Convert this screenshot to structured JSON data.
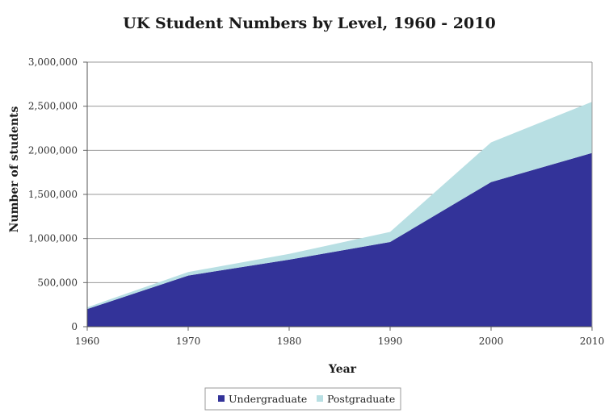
{
  "chart_data": {
    "type": "area",
    "stacked": true,
    "title": "UK Student Numbers by Level, 1960 - 2010",
    "xlabel": "Year",
    "ylabel": "Number of students",
    "x": [
      1960,
      1970,
      1980,
      1990,
      2000,
      2010
    ],
    "xticks": [
      "1960",
      "1970",
      "1980",
      "1990",
      "2000",
      "2010"
    ],
    "ylim": [
      0,
      3000000
    ],
    "yticks": [
      {
        "value": 0,
        "label": "0"
      },
      {
        "value": 500000,
        "label": "500,000"
      },
      {
        "value": 1000000,
        "label": "1,000,000"
      },
      {
        "value": 1500000,
        "label": "1,500,000"
      },
      {
        "value": 2000000,
        "label": "2,000,000"
      },
      {
        "value": 2500000,
        "label": "2,500,000"
      },
      {
        "value": 3000000,
        "label": "3,000,000"
      }
    ],
    "series": [
      {
        "name": "Undergraduate",
        "color": "#333399",
        "values": [
          200000,
          580000,
          760000,
          960000,
          1640000,
          1970000
        ]
      },
      {
        "name": "Postgraduate",
        "color": "#b8dfe3",
        "values": [
          20000,
          40000,
          65000,
          115000,
          450000,
          580000
        ]
      }
    ],
    "grid": true,
    "legend": "bottom"
  }
}
